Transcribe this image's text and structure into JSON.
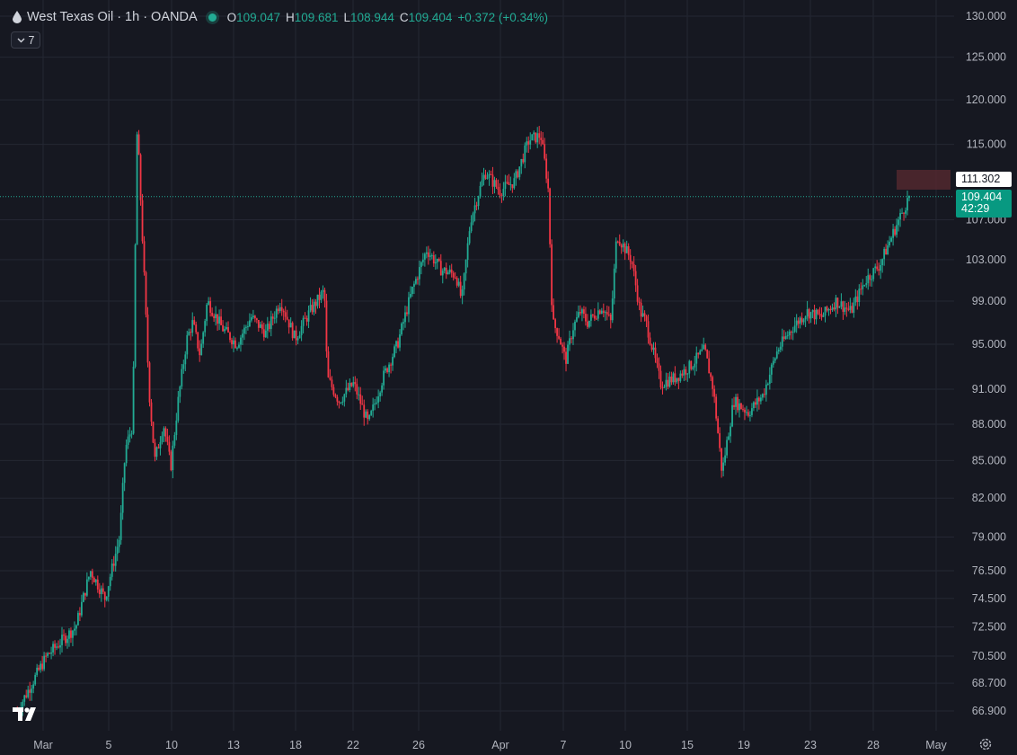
{
  "header": {
    "symbol": "West Texas Oil · 1h · OANDA",
    "open_label": "O",
    "open": "109.047",
    "high_label": "H",
    "high": "109.681",
    "low_label": "L",
    "low": "108.944",
    "close_label": "C",
    "close": "109.404",
    "change": "+0.372 (+0.34%)"
  },
  "indicators_badge": "7",
  "price_tags": {
    "alert_price": "111.302",
    "last_price": "109.404",
    "countdown": "42:29"
  },
  "colors": {
    "up": "#22ab94",
    "down": "#f23645",
    "background": "#161821",
    "grid": "#242733"
  },
  "icons": [
    "oil-drop-icon",
    "chevron-down-icon",
    "tradingview-logo-icon",
    "settings-gear-icon"
  ],
  "chart_data": {
    "type": "candlestick",
    "title": "West Texas Oil · 1h · OANDA",
    "interval": "1h",
    "y_ticks": [
      130.0,
      125.0,
      120.0,
      115.0,
      107.0,
      103.0,
      99.0,
      95.0,
      91.0,
      88.0,
      85.0,
      82.0,
      79.0,
      76.5,
      74.5,
      72.5,
      70.5,
      68.7,
      66.9
    ],
    "y_tick_labels": [
      "130.000",
      "125.000",
      "120.000",
      "115.000",
      "107.000",
      "103.000",
      "99.000",
      "95.000",
      "91.000",
      "88.000",
      "85.000",
      "82.000",
      "79.000",
      "76.500",
      "74.500",
      "72.500",
      "70.500",
      "68.700",
      "66.900"
    ],
    "x_tick_labels": [
      "Mar",
      "5",
      "10",
      "13",
      "18",
      "22",
      "26",
      "Apr",
      "7",
      "10",
      "15",
      "19",
      "23",
      "28",
      "May"
    ],
    "scale": "log",
    "grid": true,
    "series": [
      {
        "name": "West Texas Oil",
        "path": [
          [
            1,
            66.9
          ],
          [
            3,
            70.5
          ],
          [
            5,
            72.5
          ],
          [
            6,
            76.5
          ],
          [
            7,
            74.5
          ],
          [
            8,
            79.0
          ],
          [
            8.4,
            86.0
          ],
          [
            8.9,
            88.0
          ],
          [
            9.2,
            117.0
          ],
          [
            9.5,
            107.0
          ],
          [
            10,
            91.0
          ],
          [
            10.4,
            85.0
          ],
          [
            11,
            88.0
          ],
          [
            11.5,
            84.5
          ],
          [
            12,
            90.0
          ],
          [
            12.6,
            95.5
          ],
          [
            13,
            97.0
          ],
          [
            13.5,
            94.0
          ],
          [
            14,
            99.0
          ],
          [
            15,
            96.5
          ],
          [
            16,
            95.0
          ],
          [
            17,
            97.5
          ],
          [
            18,
            96.0
          ],
          [
            19,
            99.0
          ],
          [
            20,
            95.5
          ],
          [
            21,
            98.0
          ],
          [
            22,
            100.0
          ],
          [
            22.2,
            92.0
          ],
          [
            23,
            90.0
          ],
          [
            24,
            91.5
          ],
          [
            25,
            88.0
          ],
          [
            26,
            92.0
          ],
          [
            27,
            95.0
          ],
          [
            28,
            100.0
          ],
          [
            29,
            104.0
          ],
          [
            30,
            102.0
          ],
          [
            31,
            101.5
          ],
          [
            31.4,
            99.0
          ],
          [
            32,
            107.0
          ],
          [
            33,
            112.0
          ],
          [
            34,
            110.0
          ],
          [
            35,
            111.0
          ],
          [
            36,
            115.5
          ],
          [
            36.8,
            116.0
          ],
          [
            37.3,
            110.5
          ],
          [
            37.6,
            97.0
          ],
          [
            38,
            96.0
          ],
          [
            38.5,
            93.5
          ],
          [
            39,
            96.5
          ],
          [
            39.5,
            98.0
          ],
          [
            40,
            97.0
          ],
          [
            41,
            98.5
          ],
          [
            41.6,
            97.0
          ],
          [
            42,
            105.5
          ],
          [
            43,
            103.0
          ],
          [
            43.6,
            98.0
          ],
          [
            44,
            97.0
          ],
          [
            45,
            91.5
          ],
          [
            46,
            92.0
          ],
          [
            47,
            93.0
          ],
          [
            48,
            94.5
          ],
          [
            48.6,
            91.0
          ],
          [
            49.2,
            84.0
          ],
          [
            50,
            90.0
          ],
          [
            51,
            89.0
          ],
          [
            52,
            90.5
          ],
          [
            53,
            94.5
          ],
          [
            54,
            96.5
          ],
          [
            55,
            98.0
          ],
          [
            56,
            97.5
          ],
          [
            57,
            99.0
          ],
          [
            58,
            98.0
          ],
          [
            59,
            101.0
          ],
          [
            60,
            102.5
          ],
          [
            61,
            106.0
          ],
          [
            62,
            109.4
          ]
        ]
      }
    ]
  }
}
